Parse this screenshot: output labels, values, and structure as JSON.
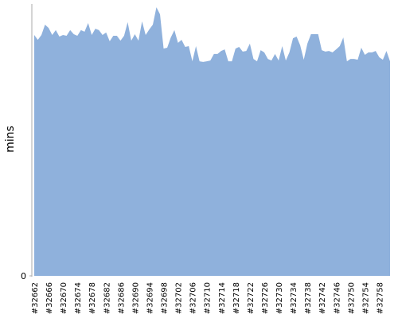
{
  "chart_data": {
    "type": "area",
    "y_label": "mins",
    "color": "#8fb1dc",
    "categories": [
      "#32662",
      null,
      null,
      null,
      "#32666",
      null,
      null,
      null,
      "#32670",
      null,
      null,
      null,
      "#32674",
      null,
      null,
      null,
      "#32678",
      null,
      null,
      null,
      "#32682",
      null,
      null,
      null,
      "#32686",
      null,
      null,
      null,
      "#32690",
      null,
      null,
      null,
      "#32694",
      null,
      null,
      null,
      "#32698",
      null,
      null,
      null,
      "#32702",
      null,
      null,
      null,
      "#32706",
      null,
      null,
      null,
      "#32710",
      null,
      null,
      null,
      "#32714",
      null,
      null,
      null,
      "#32718",
      null,
      null,
      null,
      "#32722",
      null,
      null,
      null,
      "#32726",
      null,
      null,
      null,
      "#32730",
      null,
      null,
      null,
      "#32734",
      null,
      null,
      null,
      "#32738",
      null,
      null,
      null,
      "#32742",
      null,
      null,
      null,
      "#32746",
      null,
      null,
      null,
      "#32750",
      null,
      null,
      null,
      "#32754",
      null,
      null,
      null,
      "#32758",
      null,
      null,
      null
    ],
    "values": [
      88.6,
      86.8,
      88.6,
      92.4,
      91.2,
      88.6,
      90.4,
      88,
      88.6,
      88.3,
      90.4,
      88.9,
      88.3,
      90.4,
      89.8,
      93,
      88.6,
      90.9,
      90.4,
      88.6,
      89.5,
      86.3,
      88.3,
      88.3,
      86.5,
      88.3,
      93.3,
      86.5,
      88.9,
      86.5,
      93.6,
      88.6,
      90.6,
      92.4,
      98.8,
      96.2,
      83.6,
      83.9,
      87.7,
      90.4,
      85.7,
      86.8,
      84.2,
      84.5,
      78.9,
      84.5,
      78.9,
      78.7,
      78.9,
      79.2,
      81.6,
      81.6,
      82.7,
      83.3,
      78.9,
      78.9,
      83.6,
      84.2,
      82.5,
      82.7,
      85.4,
      79.8,
      78.9,
      83,
      82.2,
      79.8,
      79.2,
      81.6,
      79.2,
      84.5,
      79.2,
      82.2,
      87.4,
      88,
      84.8,
      79.5,
      85.4,
      88.9,
      88.9,
      88.9,
      83,
      82.5,
      82.7,
      82.2,
      83.3,
      84.5,
      87.7,
      78.9,
      79.8,
      79.8,
      79.5,
      83.9,
      81.3,
      82.2,
      82.2,
      82.7,
      80.4,
      79.5,
      82.7,
      78.9
    ],
    "ylim": [
      0,
      100
    ],
    "yticks": [
      0
    ]
  }
}
